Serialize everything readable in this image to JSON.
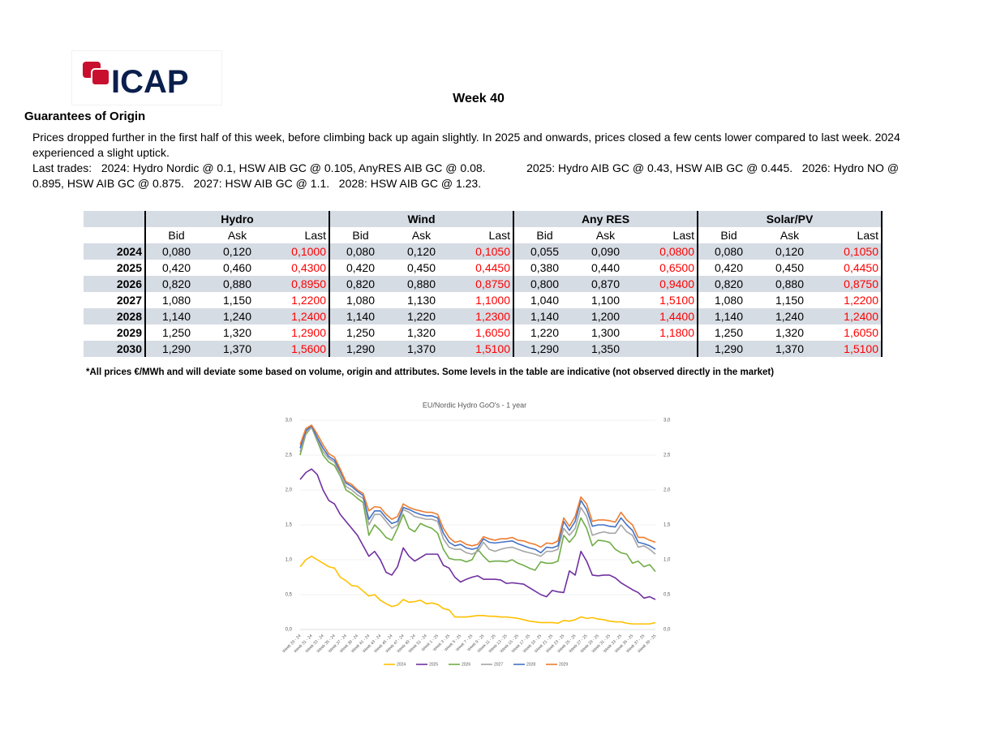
{
  "header": {
    "logo": "ICAP",
    "week": "Week 40",
    "section": "Guarantees of Origin"
  },
  "commentary": [
    "Prices dropped further in the first half of this week, before climbing back up again slightly. In 2025 and onwards, prices closed a few cents lower compared to last week. 2024 experienced a slight uptick.",
    "Last trades:   2024: Hydro Nordic @ 0.1, HSW AIB GC @ 0.105, AnyRES AIB GC @ 0.08.             2025: Hydro AIB GC @ 0.43, HSW AIB GC @ 0.445.   2026: Hydro NO @ 0.895, HSW AIB GC @ 0.875.   2027: HSW AIB GC @ 1.1.   2028: HSW AIB GC @ 1.23."
  ],
  "table": {
    "groups": [
      "Hydro",
      "Wind",
      "Any RES",
      "Solar/PV"
    ],
    "subheaders": [
      "Bid",
      "Ask",
      "Last"
    ],
    "rows": [
      {
        "year": "2024",
        "cells": [
          "0,080",
          "0,120",
          "0,1000",
          "0,080",
          "0,120",
          "0,1050",
          "0,055",
          "0,090",
          "0,0800",
          "0,080",
          "0,120",
          "0,1050"
        ]
      },
      {
        "year": "2025",
        "cells": [
          "0,420",
          "0,460",
          "0,4300",
          "0,420",
          "0,450",
          "0,4450",
          "0,380",
          "0,440",
          "0,6500",
          "0,420",
          "0,450",
          "0,4450"
        ]
      },
      {
        "year": "2026",
        "cells": [
          "0,820",
          "0,880",
          "0,8950",
          "0,820",
          "0,880",
          "0,8750",
          "0,800",
          "0,870",
          "0,9400",
          "0,820",
          "0,880",
          "0,8750"
        ]
      },
      {
        "year": "2027",
        "cells": [
          "1,080",
          "1,150",
          "1,2200",
          "1,080",
          "1,130",
          "1,1000",
          "1,040",
          "1,100",
          "1,5100",
          "1,080",
          "1,150",
          "1,2200"
        ]
      },
      {
        "year": "2028",
        "cells": [
          "1,140",
          "1,240",
          "1,2400",
          "1,140",
          "1,220",
          "1,2300",
          "1,140",
          "1,200",
          "1,4400",
          "1,140",
          "1,240",
          "1,2400"
        ]
      },
      {
        "year": "2029",
        "cells": [
          "1,250",
          "1,320",
          "1,2900",
          "1,250",
          "1,320",
          "1,6050",
          "1,220",
          "1,300",
          "1,1800",
          "1,250",
          "1,320",
          "1,6050"
        ]
      },
      {
        "year": "2030",
        "cells": [
          "1,290",
          "1,370",
          "1,5600",
          "1,290",
          "1,370",
          "1,5100",
          "1,290",
          "1,350",
          null,
          "1,290",
          "1,370",
          "1,5100"
        ]
      }
    ],
    "footnote": "*All prices €/MWh and will deviate some based on volume, origin and attributes. Some levels in the table are indicative (not observed directly in the market)"
  },
  "chart_data": {
    "type": "line",
    "title": "EU/Nordic Hydro GoO's - 1 year",
    "categories": [
      "Week 29 - 24",
      null,
      "Week 31 - 24",
      null,
      "Week 33 - 24",
      null,
      "Week 35 - 24",
      null,
      "Week 37 - 24",
      null,
      "Week 39 - 24",
      null,
      "Week 41 - 24",
      null,
      "Week 43 - 24",
      null,
      "Week 45 - 24",
      null,
      "Week 47 - 24",
      null,
      "Week 49 - 24",
      null,
      "Week 51 - 24",
      null,
      "Week 1 - 25",
      null,
      "Week 3 - 25",
      null,
      "Week 5 - 25",
      null,
      "Week 7 - 25",
      null,
      "Week 9 - 25",
      null,
      "Week 11 - 25",
      null,
      "Week 13 - 25",
      null,
      "Week 15 - 25",
      null,
      "Week 17 - 25",
      null,
      "Week 19 - 25",
      null,
      "Week 21 - 25",
      null,
      "Week 23 - 25",
      null,
      "Week 25 - 25",
      null,
      "Week 27 - 25",
      null,
      "Week 29 - 25",
      null,
      "Week 31 - 25",
      null,
      "Week 33 - 25",
      null,
      "Week 35 - 25",
      null,
      "Week 37 - 25",
      null,
      "Week 39 - 25"
    ],
    "series": [
      {
        "name": "2024",
        "color": "#ffc000",
        "values": [
          0.9,
          1.0,
          1.05,
          1.0,
          0.95,
          0.9,
          0.88,
          0.75,
          0.7,
          0.63,
          0.62,
          0.55,
          0.48,
          0.5,
          0.42,
          0.37,
          0.33,
          0.35,
          0.43,
          0.39,
          0.4,
          0.42,
          0.37,
          0.38,
          0.36,
          0.3,
          0.28,
          0.18,
          0.18,
          0.18,
          0.19,
          0.2,
          0.2,
          0.19,
          0.19,
          0.18,
          0.18,
          0.17,
          0.16,
          0.14,
          0.12,
          0.11,
          0.1,
          0.1,
          0.1,
          0.09,
          0.13,
          0.12,
          0.14,
          0.18,
          0.16,
          0.17,
          0.15,
          0.14,
          0.12,
          0.11,
          0.11,
          0.09,
          0.08,
          0.08,
          0.08,
          0.08,
          0.1
        ]
      },
      {
        "name": "2025",
        "color": "#7030a0",
        "values": [
          2.15,
          2.25,
          2.3,
          2.22,
          2.0,
          1.85,
          1.8,
          1.65,
          1.55,
          1.45,
          1.35,
          1.2,
          1.05,
          1.12,
          1.0,
          0.82,
          0.78,
          0.9,
          1.17,
          1.05,
          0.98,
          1.03,
          1.08,
          1.08,
          1.08,
          0.92,
          0.88,
          0.75,
          0.68,
          0.72,
          0.75,
          0.77,
          0.72,
          0.72,
          0.72,
          0.71,
          0.66,
          0.67,
          0.66,
          0.65,
          0.6,
          0.55,
          0.5,
          0.47,
          0.56,
          0.54,
          0.53,
          0.84,
          0.78,
          1.12,
          0.98,
          0.78,
          0.77,
          0.78,
          0.78,
          0.74,
          0.67,
          0.62,
          0.57,
          0.53,
          0.45,
          0.47,
          0.43
        ]
      },
      {
        "name": "2026",
        "color": "#70ad47",
        "values": [
          2.5,
          2.8,
          2.9,
          2.7,
          2.5,
          2.4,
          2.35,
          2.2,
          2.0,
          1.95,
          1.88,
          1.82,
          1.35,
          1.5,
          1.42,
          1.32,
          1.28,
          1.45,
          1.65,
          1.45,
          1.4,
          1.52,
          1.48,
          1.45,
          1.38,
          1.15,
          1.02,
          1.0,
          1.0,
          0.97,
          1.0,
          1.15,
          1.05,
          0.97,
          0.98,
          0.98,
          0.97,
          1.0,
          0.95,
          0.92,
          0.88,
          0.85,
          0.97,
          0.95,
          0.95,
          0.98,
          1.35,
          1.25,
          1.35,
          1.6,
          1.45,
          1.2,
          1.28,
          1.27,
          1.25,
          1.15,
          1.1,
          1.08,
          0.95,
          0.98,
          0.9,
          0.93,
          0.83
        ]
      },
      {
        "name": "2027",
        "color": "#a5a5a5",
        "values": [
          2.55,
          2.82,
          2.9,
          2.72,
          2.55,
          2.45,
          2.4,
          2.22,
          2.05,
          2.0,
          1.93,
          1.88,
          1.5,
          1.65,
          1.65,
          1.55,
          1.45,
          1.5,
          1.72,
          1.68,
          1.62,
          1.6,
          1.58,
          1.58,
          1.55,
          1.3,
          1.18,
          1.15,
          1.15,
          1.1,
          1.08,
          1.12,
          1.25,
          1.15,
          1.12,
          1.15,
          1.17,
          1.18,
          1.15,
          1.12,
          1.1,
          1.08,
          1.05,
          1.12,
          1.12,
          1.15,
          1.45,
          1.35,
          1.45,
          1.75,
          1.62,
          1.35,
          1.38,
          1.4,
          1.38,
          1.38,
          1.5,
          1.4,
          1.35,
          1.18,
          1.2,
          1.15,
          1.08
        ]
      },
      {
        "name": "2028",
        "color": "#4472c4",
        "values": [
          2.6,
          2.85,
          2.92,
          2.75,
          2.6,
          2.48,
          2.43,
          2.27,
          2.1,
          2.05,
          1.98,
          1.92,
          1.58,
          1.7,
          1.7,
          1.6,
          1.52,
          1.55,
          1.75,
          1.72,
          1.68,
          1.65,
          1.63,
          1.63,
          1.6,
          1.38,
          1.25,
          1.2,
          1.22,
          1.17,
          1.15,
          1.17,
          1.3,
          1.25,
          1.24,
          1.25,
          1.26,
          1.27,
          1.23,
          1.2,
          1.17,
          1.15,
          1.1,
          1.18,
          1.17,
          1.2,
          1.55,
          1.42,
          1.55,
          1.85,
          1.72,
          1.48,
          1.5,
          1.5,
          1.48,
          1.47,
          1.6,
          1.5,
          1.42,
          1.25,
          1.23,
          1.2,
          1.15
        ]
      },
      {
        "name": "2029",
        "color": "#ed7d31",
        "values": [
          2.65,
          2.88,
          2.93,
          2.8,
          2.65,
          2.52,
          2.47,
          2.3,
          2.12,
          2.08,
          2.0,
          1.95,
          1.7,
          1.76,
          1.75,
          1.65,
          1.58,
          1.62,
          1.8,
          1.75,
          1.72,
          1.7,
          1.68,
          1.68,
          1.65,
          1.45,
          1.32,
          1.25,
          1.27,
          1.22,
          1.2,
          1.22,
          1.33,
          1.3,
          1.28,
          1.3,
          1.3,
          1.32,
          1.28,
          1.27,
          1.24,
          1.22,
          1.18,
          1.24,
          1.23,
          1.27,
          1.6,
          1.48,
          1.62,
          1.9,
          1.8,
          1.55,
          1.57,
          1.57,
          1.56,
          1.54,
          1.68,
          1.57,
          1.5,
          1.32,
          1.32,
          1.28,
          1.25
        ]
      }
    ],
    "ylim": [
      0,
      3
    ],
    "yticks": [
      {
        "value": 0,
        "label": "0,0"
      },
      {
        "value": 0.5,
        "label": "0,5"
      },
      {
        "value": 1,
        "label": "1,0"
      },
      {
        "value": 1.5,
        "label": "1,5"
      },
      {
        "value": 2,
        "label": "2,0"
      },
      {
        "value": 2.5,
        "label": "2,5"
      },
      {
        "value": 3,
        "label": "3,0"
      }
    ],
    "grid": true,
    "legend": "bottom"
  }
}
